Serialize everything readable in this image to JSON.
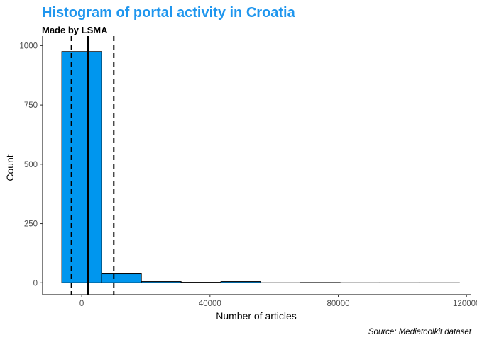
{
  "chart_data": {
    "type": "histogram",
    "title": "Histogram of portal activity in Croatia",
    "subtitle": "Made by LSMA",
    "caption": "Source: Mediatoolkit dataset",
    "xlabel": "Number of articles",
    "ylabel": "Count",
    "bin_width": 12400,
    "bins": [
      {
        "x_start": -6200,
        "x_end": 6200,
        "count": 975
      },
      {
        "x_start": 6200,
        "x_end": 18600,
        "count": 38
      },
      {
        "x_start": 18600,
        "x_end": 31000,
        "count": 5
      },
      {
        "x_start": 31000,
        "x_end": 43400,
        "count": 2
      },
      {
        "x_start": 43400,
        "x_end": 55800,
        "count": 5
      },
      {
        "x_start": 55800,
        "x_end": 68200,
        "count": 0
      },
      {
        "x_start": 68200,
        "x_end": 80600,
        "count": 1
      },
      {
        "x_start": 80600,
        "x_end": 93000,
        "count": 0
      },
      {
        "x_start": 93000,
        "x_end": 105400,
        "count": 0
      },
      {
        "x_start": 105400,
        "x_end": 117800,
        "count": 0
      }
    ],
    "xlim": [
      -12200,
      121500
    ],
    "ylim": [
      -50,
      1040
    ],
    "x_ticks": [
      {
        "value": 0,
        "label": "0"
      },
      {
        "value": 40000,
        "label": "40000"
      },
      {
        "value": 80000,
        "label": "80000"
      },
      {
        "value": 120000,
        "label": "120000"
      }
    ],
    "y_ticks": [
      {
        "value": 0,
        "label": "0"
      },
      {
        "value": 250,
        "label": "250"
      },
      {
        "value": 500,
        "label": "500"
      },
      {
        "value": 750,
        "label": "750"
      },
      {
        "value": 1000,
        "label": "1000"
      }
    ],
    "reference_lines": [
      {
        "name": "mean",
        "value": 1900,
        "style": "solid"
      },
      {
        "name": "lower-bound",
        "value": -3200,
        "style": "dashed"
      },
      {
        "name": "upper-bound",
        "value": 10000,
        "style": "dashed"
      }
    ],
    "grid": false
  },
  "colors": {
    "title": "#1f96ee",
    "bar_fill": "#0096ee",
    "bar_stroke": "#000000",
    "axis": "#000000",
    "tick_label": "#4d4d4d",
    "reference_line": "#000000"
  }
}
